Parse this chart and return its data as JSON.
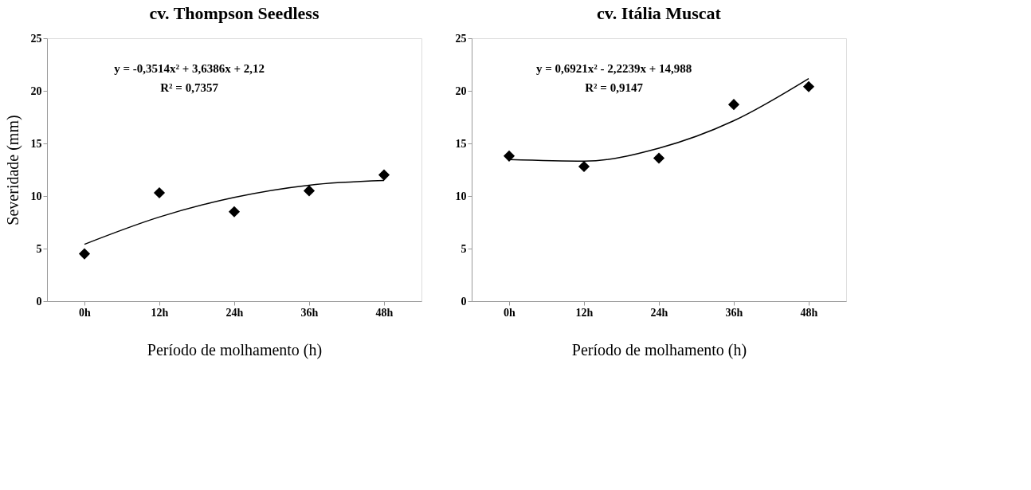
{
  "chart_data": [
    {
      "type": "scatter",
      "title": "cv. Thompson Seedless",
      "xlabel": "Período de molhamento (h)",
      "ylabel": "Severidade (mm)",
      "categories": [
        "0h",
        "12h",
        "24h",
        "36h",
        "48h"
      ],
      "series": [
        {
          "color": "#000000",
          "marker": "diamond",
          "values": [
            4.5,
            10.3,
            8.5,
            10.5,
            12.0
          ]
        },
        {
          "type": "line",
          "color": "#000000",
          "line_style": "solid",
          "x": [
            "0h",
            "12h",
            "24h",
            "36h",
            "48h"
          ],
          "values": [
            5.41,
            8.0,
            9.87,
            11.03,
            11.47
          ]
        }
      ],
      "ylim": [
        0,
        25
      ],
      "yticks": [
        0,
        5,
        10,
        15,
        20,
        25
      ],
      "grid": false,
      "annotations": [
        "y = -0,3514x² + 3,6386x + 2,12",
        "R² = 0,7357"
      ]
    },
    {
      "type": "scatter",
      "title": "cv. Itália Muscat",
      "xlabel": "Período de molhamento (h)",
      "categories": [
        "0h",
        "12h",
        "24h",
        "36h",
        "48h"
      ],
      "series": [
        {
          "color": "#000000",
          "marker": "diamond",
          "values": [
            13.8,
            12.8,
            13.6,
            18.7,
            20.4
          ]
        },
        {
          "type": "line",
          "color": "#000000",
          "line_style": "solid",
          "x": [
            "0h",
            "12h",
            "24h",
            "36h",
            "48h"
          ],
          "values": [
            13.46,
            13.31,
            14.55,
            17.16,
            21.17
          ]
        }
      ],
      "ylim": [
        0,
        25
      ],
      "yticks": [
        0,
        5,
        10,
        15,
        20,
        25
      ],
      "grid": false,
      "annotations": [
        "y = 0,6921x² - 2,2239x + 14,988",
        "R² = 0,9147"
      ]
    }
  ]
}
